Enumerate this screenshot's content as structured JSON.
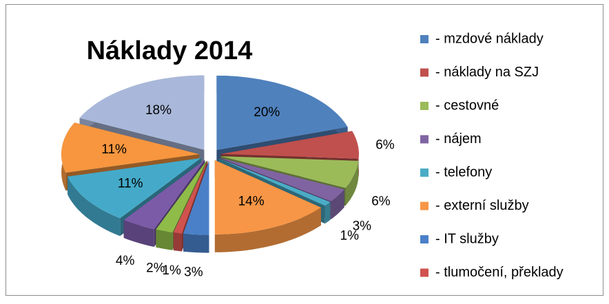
{
  "chart_data": {
    "type": "pie",
    "title": "Náklady 2014",
    "categories": [
      "- mzdové náklady",
      "- náklady na SZJ",
      "- cestovné",
      "- nájem",
      "- telefony",
      "- externí služby",
      "- IT služby",
      "- tlumočení, překlady",
      null,
      null,
      null,
      null,
      null
    ],
    "values": [
      20,
      6,
      6,
      3,
      1,
      14,
      3,
      1,
      2,
      4,
      11,
      11,
      18
    ],
    "value_labels": [
      "20%",
      "6%",
      "6%",
      "3%",
      "1%",
      "14%",
      "3%",
      "1%",
      "2%",
      "4%",
      "11%",
      "11%",
      "18%"
    ],
    "colors": [
      "#4f81bd",
      "#c0504d",
      "#9bbb59",
      "#8064a2",
      "#4bacc6",
      "#f79646",
      "#4a80c8",
      "#d0524e",
      "#8fbc48",
      "#7b5ba8",
      "#45aac9",
      "#f7963e",
      "#a9b8da"
    ]
  }
}
